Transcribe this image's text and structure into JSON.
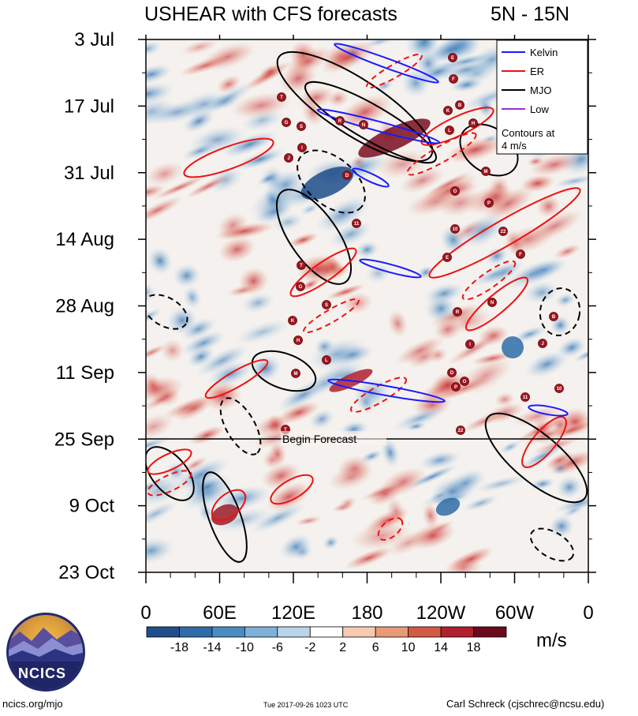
{
  "header": {
    "title": "USHEAR with CFS forecasts",
    "region": "5N - 15N"
  },
  "chart_data": {
    "type": "heatmap",
    "title": "USHEAR with CFS forecasts",
    "latitude_band": "5N - 15N",
    "ylabel": "",
    "xlabel": "",
    "y_ticks": [
      "3 Jul",
      "17 Jul",
      "31 Jul",
      "14 Aug",
      "28 Aug",
      "11 Sep",
      "25 Sep",
      "9 Oct",
      "23 Oct"
    ],
    "x_ticks": [
      "0",
      "60E",
      "120E",
      "180",
      "120W",
      "60W",
      "0"
    ],
    "forecast_line": {
      "date": "25 Sep",
      "label": "Begin Forecast"
    },
    "colorbar": {
      "labels": [
        "-18",
        "-14",
        "-10",
        "-6",
        "-2",
        "2",
        "6",
        "10",
        "14",
        "18"
      ],
      "colors": [
        "#1f4e8a",
        "#2f6ca8",
        "#4a8cc2",
        "#7fb0d8",
        "#b9d5ea",
        "#ffffff",
        "#f6cbb0",
        "#e99a78",
        "#d45a45",
        "#b0202e",
        "#6b0a1c"
      ],
      "units": "m/s"
    },
    "legend": {
      "position": "top-right",
      "entries": [
        {
          "name": "Kelvin",
          "color": "#1a1aff"
        },
        {
          "name": "ER",
          "color": "#ee1111"
        },
        {
          "name": "MJO",
          "color": "#000000"
        },
        {
          "name": "Low",
          "color": "#9a30d0"
        }
      ],
      "note_line1": "Contours at",
      "note_line2": "4 m/s"
    },
    "storm_markers": [
      "T",
      "E",
      "F",
      "G",
      "S",
      "R",
      "N",
      "K",
      "B",
      "H",
      "I",
      "J",
      "L",
      "M",
      "D",
      "O",
      "P",
      "11",
      "10",
      "22"
    ]
  },
  "footer": {
    "left": "ncics.org/mjo",
    "center": "Tue 2017-09-26 1023 UTC",
    "right": "Carl Schreck (cjschrec@ncsu.edu)"
  },
  "logo": {
    "text": "NCICS"
  }
}
